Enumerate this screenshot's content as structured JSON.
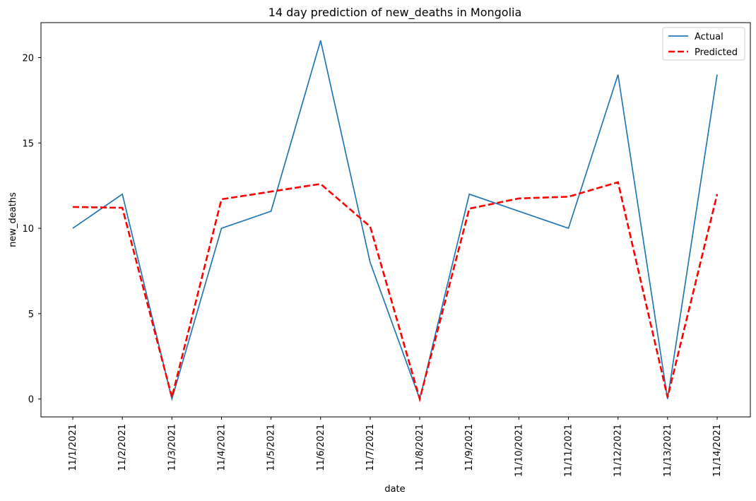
{
  "chart_data": {
    "type": "line",
    "title": "14 day prediction of new_deaths in Mongolia",
    "xlabel": "date",
    "ylabel": "new_deaths",
    "categories": [
      "11/1/2021",
      "11/2/2021",
      "11/3/2021",
      "11/4/2021",
      "11/5/2021",
      "11/6/2021",
      "11/7/2021",
      "11/8/2021",
      "11/9/2021",
      "11/10/2021",
      "11/11/2021",
      "11/12/2021",
      "11/13/2021",
      "11/14/2021"
    ],
    "yticks": [
      0,
      5,
      10,
      15,
      20
    ],
    "ylim": [
      -1.05,
      22.05
    ],
    "grid": false,
    "legend_position": "top-right",
    "series": [
      {
        "name": "Actual",
        "color": "#1f77b4",
        "style": "solid",
        "values": [
          10,
          12,
          0,
          10,
          11,
          21,
          8,
          0,
          12,
          11,
          10,
          19,
          0,
          19
        ]
      },
      {
        "name": "Predicted",
        "color": "#ff0000",
        "style": "dashed",
        "values": [
          11.25,
          11.2,
          0.1,
          11.7,
          12.15,
          12.6,
          10.1,
          0,
          11.15,
          11.75,
          11.85,
          12.7,
          0.1,
          12
        ]
      }
    ]
  }
}
